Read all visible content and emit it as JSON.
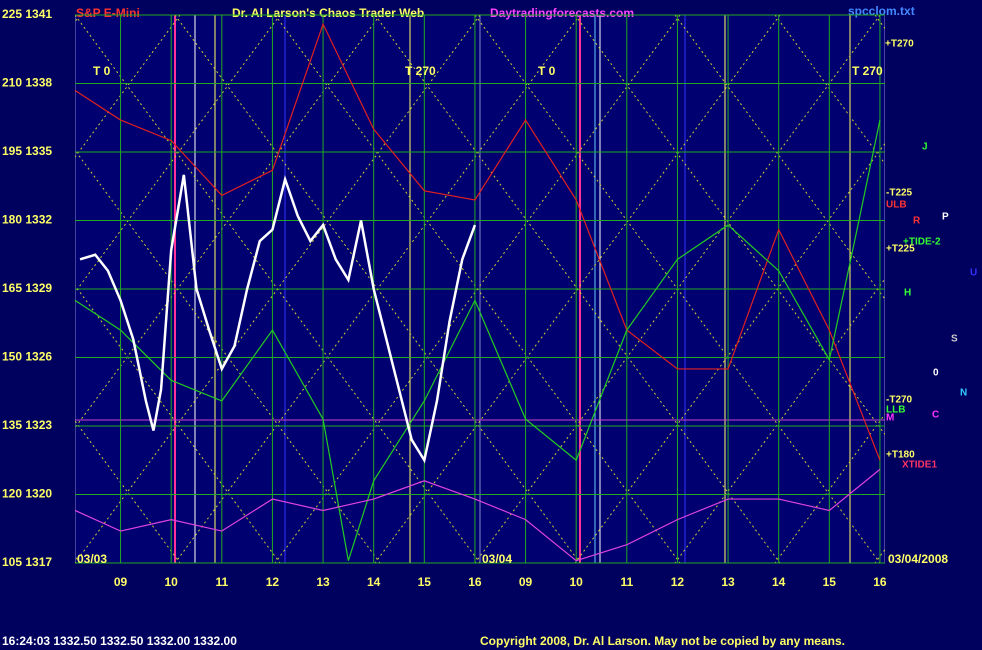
{
  "chart_data": {
    "type": "line",
    "title": "Dr. Al Larson's Chaos Trader Web",
    "symbol": "S&P E-Mini",
    "site": "Daytradingforecasts.com",
    "file": "spcclom.txt",
    "quote": "16:24:03  1332.50 1332.50 1332.00 1332.00",
    "copyright": "Copyright 2008, Dr. Al Larson. May not be copied by any means.",
    "session_labels": [
      "T 0",
      "T 270",
      "T 0",
      "T 270"
    ],
    "date_labels": [
      "03/03",
      "03/04",
      "03/04/2008"
    ],
    "annotations": [
      "+T270",
      "-T225",
      "ULB",
      "R",
      "P",
      "+TIDE-2",
      "+T225",
      "H",
      "J",
      "U",
      "S",
      "0",
      "N",
      "-T270",
      "LLB",
      "C",
      "M",
      "+T180",
      "XTIDE1"
    ],
    "xlim": [
      8.1,
      24.1
    ],
    "ylim": [
      1317,
      1341
    ],
    "xticks": [
      {
        "value": 9,
        "label": "09"
      },
      10,
      11,
      12,
      13,
      14,
      15,
      16,
      {
        "value": 17,
        "label": "09"
      },
      {
        "value": 18,
        "label": "10"
      },
      {
        "value": 19,
        "label": "11"
      },
      {
        "value": 20,
        "label": "12"
      },
      {
        "value": 21,
        "label": "13"
      },
      {
        "value": 22,
        "label": "14"
      },
      {
        "value": 23,
        "label": "15"
      },
      {
        "value": 24,
        "label": "16"
      }
    ],
    "yticks": [
      {
        "value": 1317,
        "label": "105 1317"
      },
      {
        "value": 1320,
        "label": "120 1320"
      },
      {
        "value": 1323,
        "label": "135 1323"
      },
      {
        "value": 1326,
        "label": "150 1326"
      },
      {
        "value": 1329,
        "label": "165 1329"
      },
      {
        "value": 1332,
        "label": "180 1332"
      },
      {
        "value": 1335,
        "label": "195 1335"
      },
      {
        "value": 1338,
        "label": "210 1338"
      },
      {
        "value": 1341,
        "label": "225 1341"
      }
    ],
    "grid": true,
    "series": [
      {
        "color": "#ffffff",
        "x": [
          8.2,
          8.5,
          8.75,
          9,
          9.25,
          9.5,
          9.65,
          9.8,
          10,
          10.25,
          10.5,
          10.75,
          11,
          11.25,
          11.5,
          11.75,
          12,
          12.25,
          12.5,
          12.75,
          13,
          13.25,
          13.5,
          13.75,
          14,
          14.25,
          14.5,
          14.75,
          15,
          15.25,
          15.5,
          15.75,
          16
        ],
        "values": [
          1330.3,
          1330.5,
          1329.8,
          1328.5,
          1326.8,
          1324.1,
          1322.8,
          1324.6,
          1330.7,
          1334.0,
          1329.0,
          1327.2,
          1325.5,
          1326.5,
          1329.0,
          1331.1,
          1331.6,
          1333.8,
          1332.2,
          1331.1,
          1331.8,
          1330.3,
          1329.4,
          1332.0,
          1329.0,
          1326.8,
          1324.6,
          1322.4,
          1321.5,
          1324.1,
          1327.6,
          1330.3,
          1331.8
        ]
      },
      {
        "color": "#e02020",
        "x": [
          8.1,
          9,
          10,
          11,
          12,
          13,
          14,
          15,
          16,
          17,
          18,
          19,
          20,
          21,
          22,
          23,
          24
        ],
        "values": [
          1337.7,
          1336.4,
          1335.5,
          1333.1,
          1334.2,
          1340.6,
          1336.0,
          1333.3,
          1332.9,
          1336.4,
          1332.9,
          1327.2,
          1325.5,
          1325.5,
          1331.6,
          1327.2,
          1321.5
        ]
      },
      {
        "color": "#22cc22",
        "x": [
          8.1,
          9,
          10,
          11,
          12,
          13,
          13.5,
          14,
          15,
          16,
          17,
          18,
          19,
          20,
          21,
          22,
          23,
          23.5,
          24
        ],
        "values": [
          1328.5,
          1327.2,
          1325.0,
          1324.1,
          1327.2,
          1323.3,
          1317.1,
          1320.6,
          1324.1,
          1328.5,
          1323.3,
          1321.5,
          1327.2,
          1330.3,
          1331.8,
          1329.8,
          1325.9,
          1331.1,
          1336.4
        ]
      },
      {
        "color": "#dd44dd",
        "x": [
          8.1,
          9,
          10,
          11,
          12,
          13,
          14,
          15,
          16,
          17,
          18,
          19,
          20,
          21,
          22,
          23,
          24
        ],
        "values": [
          1319.3,
          1318.4,
          1318.9,
          1318.4,
          1319.8,
          1319.3,
          1319.8,
          1320.6,
          1319.8,
          1318.9,
          1317.1,
          1317.8,
          1318.9,
          1319.8,
          1319.8,
          1319.3,
          1321.1
        ]
      }
    ]
  }
}
